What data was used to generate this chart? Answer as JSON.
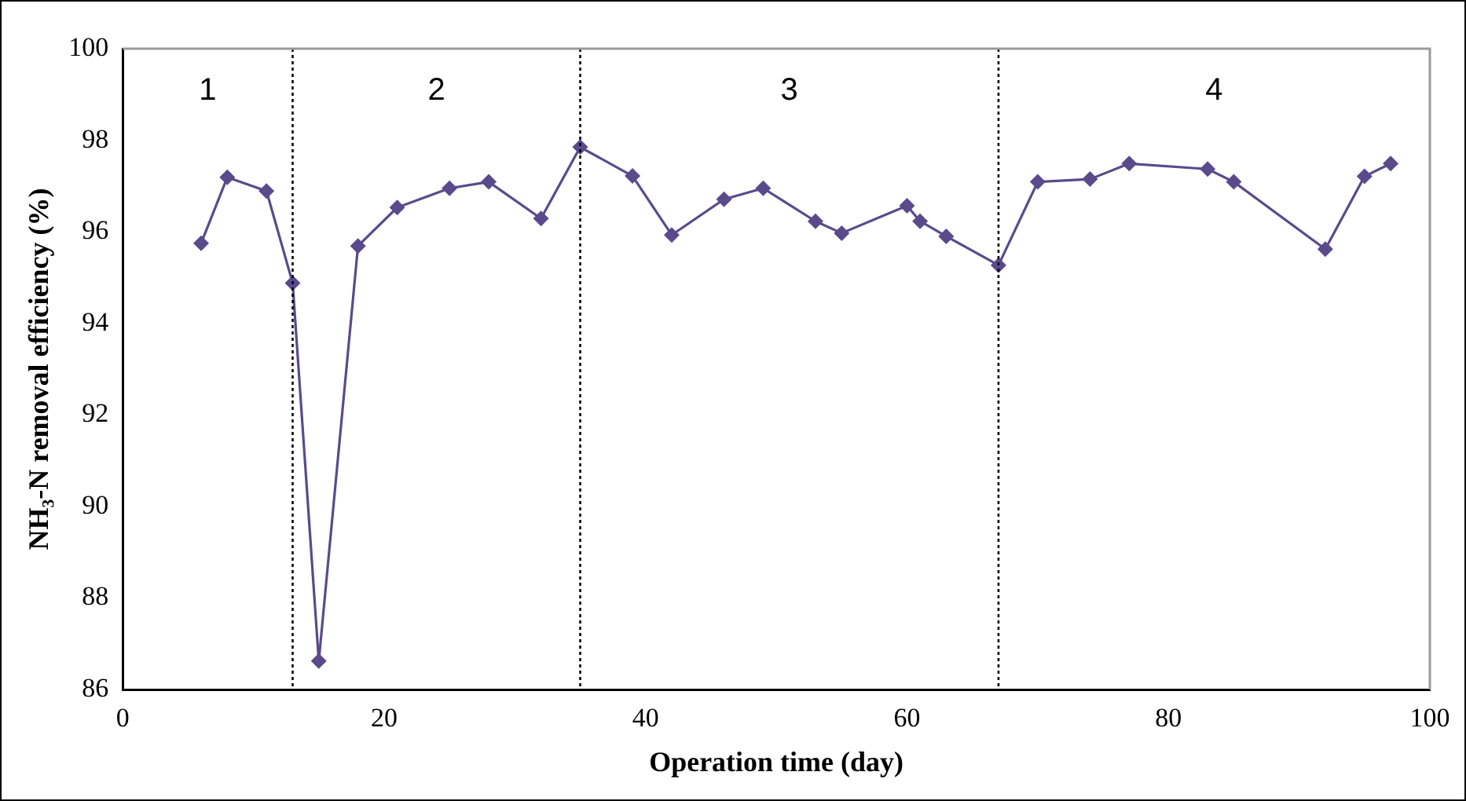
{
  "chart_data": {
    "type": "line",
    "xlabel": "Operation time (day)",
    "ylabel": "NH₃-N removal efficiency (%)",
    "x": [
      6,
      8,
      11,
      13,
      15,
      18,
      21,
      25,
      28,
      32,
      35,
      39,
      42,
      46,
      49,
      53,
      55,
      60,
      61,
      63,
      67,
      70,
      74,
      77,
      83,
      85,
      92,
      95,
      97
    ],
    "series": [
      {
        "color": "#5a4a8c",
        "values": [
          95.75,
          97.19,
          96.89,
          94.88,
          86.62,
          95.69,
          96.53,
          96.95,
          97.09,
          96.29,
          97.85,
          97.22,
          95.93,
          96.71,
          96.95,
          96.23,
          95.97,
          96.57,
          96.23,
          95.9,
          95.27,
          97.09,
          97.15,
          97.49,
          97.37,
          97.09,
          95.62,
          97.21,
          97.49
        ]
      }
    ],
    "xlim": [
      0,
      100
    ],
    "xticks": [
      0,
      20,
      40,
      60,
      80,
      100
    ],
    "ylim": [
      86,
      100
    ],
    "yticks": [
      86,
      88,
      90,
      92,
      94,
      96,
      98,
      100
    ],
    "legend": false,
    "marker": "diamond",
    "line_style": "solid",
    "ref_lines": [
      {
        "axis": "x",
        "value": 13,
        "line_style": "dotted",
        "color": "#000000"
      },
      {
        "axis": "x",
        "value": 35,
        "line_style": "dotted",
        "color": "#000000"
      },
      {
        "axis": "x",
        "value": 67,
        "line_style": "dotted",
        "color": "#000000"
      }
    ],
    "annotations": [
      "1",
      "2",
      "3",
      "4"
    ]
  }
}
